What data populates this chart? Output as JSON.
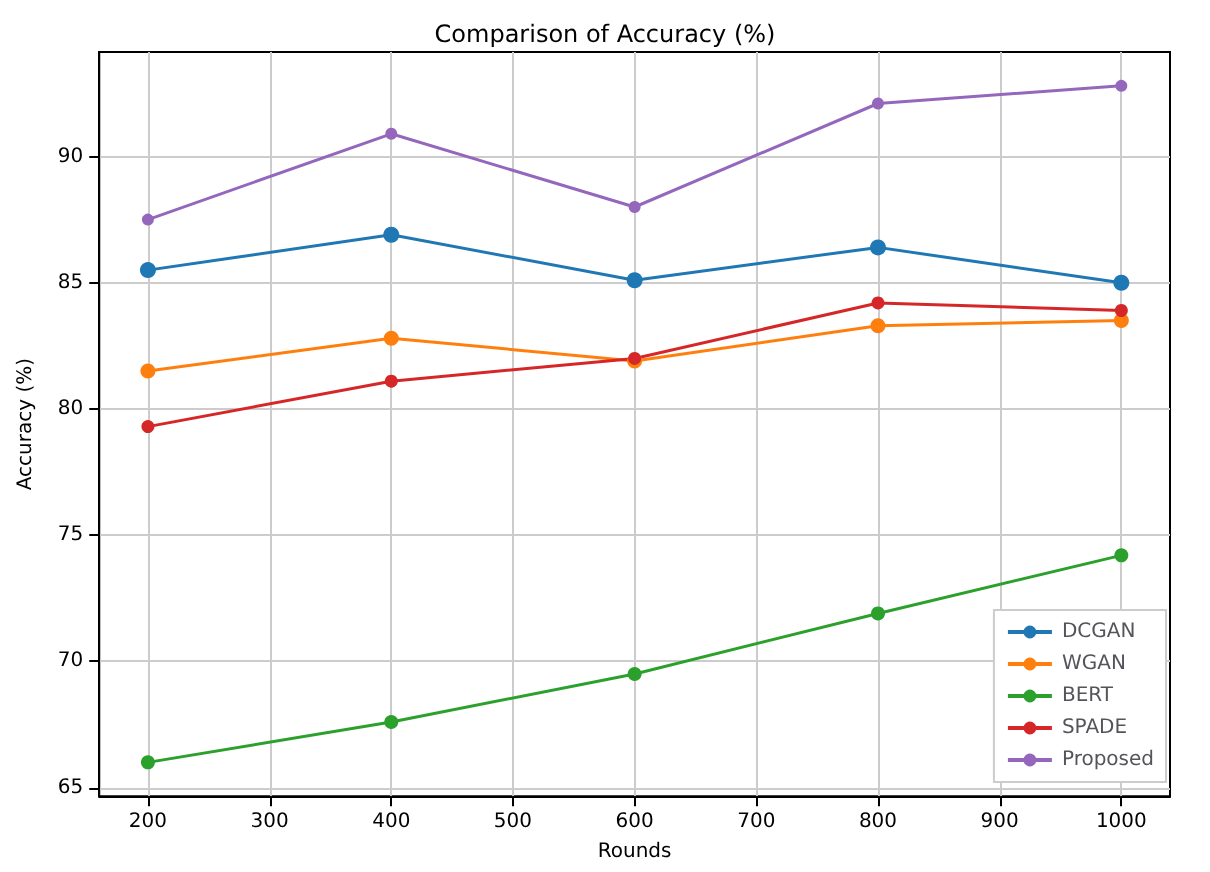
{
  "chart_data": {
    "type": "line",
    "title": "Comparison of Accuracy (%)",
    "xlabel": "Rounds",
    "ylabel": "Accuracy (%)",
    "x": [
      200,
      400,
      600,
      800,
      1000
    ],
    "series": [
      {
        "name": "DCGAN",
        "color": "#1f77b4",
        "values": [
          85.5,
          86.9,
          85.1,
          86.4,
          85.0
        ]
      },
      {
        "name": "WGAN",
        "color": "#ff7f0e",
        "values": [
          81.5,
          82.8,
          81.9,
          83.3,
          83.5
        ]
      },
      {
        "name": "BERT",
        "color": "#2ca02c",
        "values": [
          66.0,
          67.6,
          69.5,
          71.9,
          74.2
        ]
      },
      {
        "name": "SPADE",
        "color": "#d62728",
        "values": [
          79.3,
          81.1,
          82.0,
          84.2,
          83.9
        ]
      },
      {
        "name": "Proposed",
        "color": "#9467bd",
        "values": [
          87.5,
          90.9,
          88.0,
          92.1,
          92.8
        ]
      }
    ],
    "xlim": [
      160,
      1040
    ],
    "xticks": [
      200,
      300,
      400,
      500,
      600,
      700,
      800,
      900,
      1000
    ],
    "ylim": [
      64.66,
      94.14
    ],
    "yticks": [
      65,
      70,
      75,
      80,
      85,
      90
    ],
    "grid": true,
    "legend": "bottom right",
    "marker": "circle",
    "line_style": "solid"
  }
}
